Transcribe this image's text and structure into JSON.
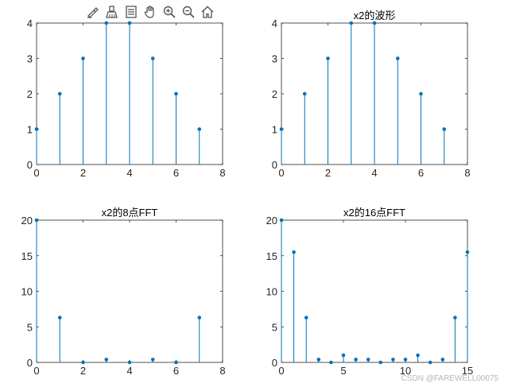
{
  "toolbar": {
    "icons": [
      "brush-edit-icon",
      "data-brush-icon",
      "legend-icon",
      "pan-hand-icon",
      "zoom-in-icon",
      "zoom-out-icon",
      "home-icon"
    ]
  },
  "watermark": "CSDN @FAREWELL00075",
  "colors": {
    "stem": "#0072BD",
    "axis": "#262626",
    "background": "#ffffff"
  },
  "chart_data": [
    {
      "type": "stem",
      "title": "",
      "x": [
        0,
        1,
        2,
        3,
        4,
        5,
        6,
        7
      ],
      "values": [
        1,
        2,
        3,
        4,
        4,
        3,
        2,
        1
      ],
      "xlim": [
        0,
        8
      ],
      "ylim": [
        0,
        4
      ],
      "xticks": [
        0,
        2,
        4,
        6,
        8
      ],
      "yticks": [
        0,
        1,
        2,
        3,
        4
      ],
      "xtick_labels": [
        "0",
        "2",
        "4",
        "6",
        "8"
      ],
      "ytick_labels": [
        "0",
        "1",
        "2",
        "3",
        "4"
      ]
    },
    {
      "type": "stem",
      "title": "x2的波形",
      "x": [
        0,
        1,
        2,
        3,
        4,
        5,
        6,
        7
      ],
      "values": [
        1,
        2,
        3,
        4,
        4,
        3,
        2,
        1
      ],
      "xlim": [
        0,
        8
      ],
      "ylim": [
        0,
        4
      ],
      "xticks": [
        0,
        2,
        4,
        6,
        8
      ],
      "yticks": [
        0,
        1,
        2,
        3,
        4
      ],
      "xtick_labels": [
        "0",
        "2",
        "4",
        "6",
        "8"
      ],
      "ytick_labels": [
        "0",
        "1",
        "2",
        "3",
        "4"
      ]
    },
    {
      "type": "stem",
      "title": "x2的8点FFT",
      "x": [
        0,
        1,
        2,
        3,
        4,
        5,
        6,
        7
      ],
      "values": [
        20,
        6.3,
        0,
        0.4,
        0,
        0.4,
        0,
        6.3
      ],
      "xlim": [
        0,
        8
      ],
      "ylim": [
        0,
        20
      ],
      "xticks": [
        0,
        2,
        4,
        6,
        8
      ],
      "yticks": [
        0,
        5,
        10,
        15,
        20
      ],
      "xtick_labels": [
        "0",
        "2",
        "4",
        "6",
        "8"
      ],
      "ytick_labels": [
        "0",
        "5",
        "10",
        "15",
        "20"
      ]
    },
    {
      "type": "stem",
      "title": "x2的16点FFT",
      "x": [
        0,
        1,
        2,
        3,
        4,
        5,
        6,
        7,
        8,
        9,
        10,
        11,
        12,
        13,
        14,
        15
      ],
      "values": [
        20,
        15.5,
        6.3,
        0.4,
        0,
        1.0,
        0.4,
        0.4,
        0,
        0.4,
        0.4,
        1.0,
        0,
        0.4,
        6.3,
        15.5
      ],
      "xlim": [
        0,
        15
      ],
      "ylim": [
        0,
        20
      ],
      "xticks": [
        0,
        5,
        10,
        15
      ],
      "yticks": [
        0,
        5,
        10,
        15,
        20
      ],
      "xtick_labels": [
        "0",
        "5",
        "10",
        "15"
      ],
      "ytick_labels": [
        "0",
        "5",
        "10",
        "15",
        "20"
      ]
    }
  ]
}
